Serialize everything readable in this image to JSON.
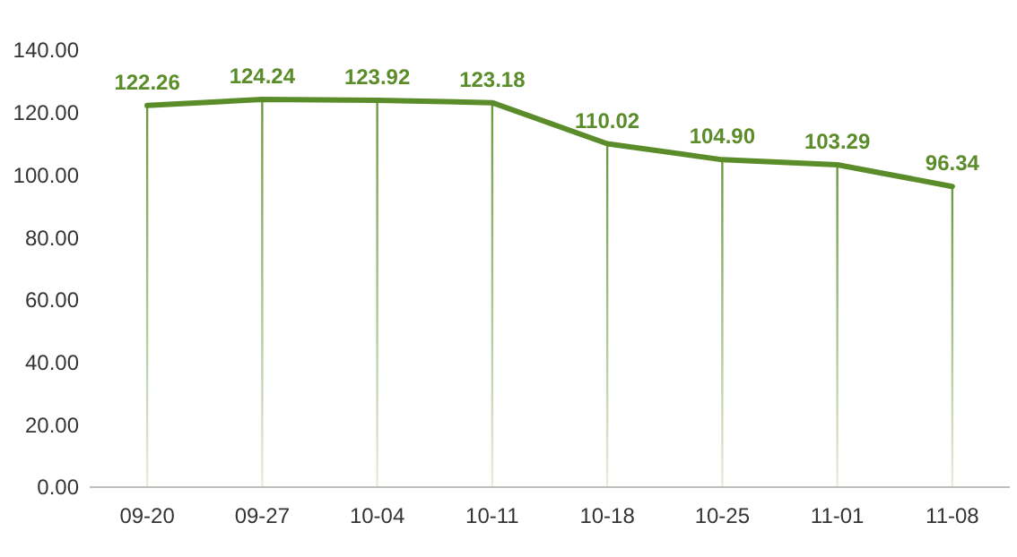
{
  "chart_data": {
    "type": "line",
    "categories": [
      "09-20",
      "09-27",
      "10-04",
      "10-11",
      "10-18",
      "10-25",
      "11-01",
      "11-08"
    ],
    "series": [
      {
        "type": "bar",
        "color": "#5b8c2a",
        "values": [
          122.26,
          124.24,
          123.92,
          123.18,
          110.02,
          104.9,
          103.29,
          96.34
        ]
      },
      {
        "color": "#5b8c2a",
        "values": [
          122.26,
          124.24,
          123.92,
          123.18,
          110.02,
          104.9,
          103.29,
          96.34
        ],
        "value_labels": [
          "122.26",
          "124.24",
          "123.92",
          "123.18",
          "110.02",
          "104.90",
          "103.29",
          "96.34"
        ]
      }
    ],
    "ylim": [
      0,
      140
    ],
    "yticks": [
      {
        "value": 0,
        "label": "0.00"
      },
      {
        "value": 20,
        "label": "20.00"
      },
      {
        "value": 40,
        "label": "40.00"
      },
      {
        "value": 60,
        "label": "60.00"
      },
      {
        "value": 80,
        "label": "80.00"
      },
      {
        "value": 100,
        "label": "100.00"
      },
      {
        "value": 120,
        "label": "120.00"
      },
      {
        "value": 140,
        "label": "140.00"
      }
    ],
    "grid": false,
    "marker": "none",
    "line_style": "solid"
  }
}
